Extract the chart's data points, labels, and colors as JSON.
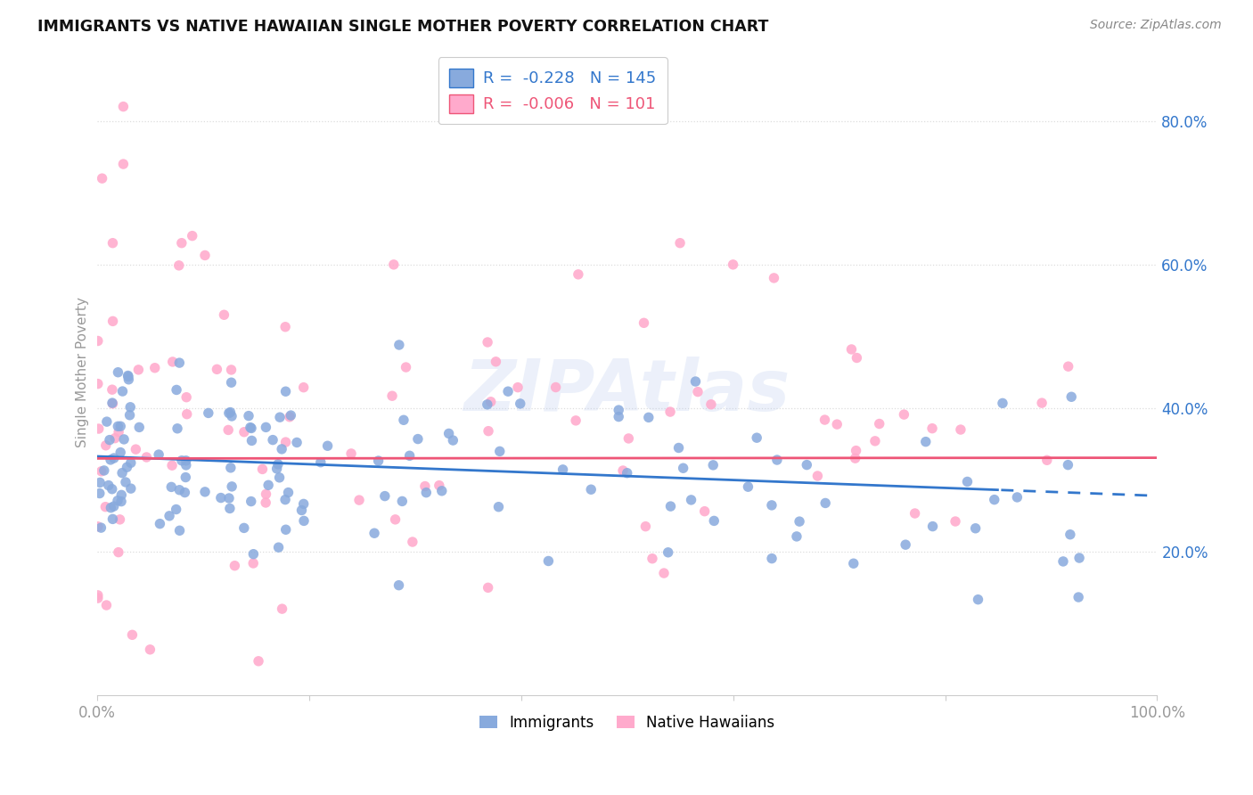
{
  "title": "IMMIGRANTS VS NATIVE HAWAIIAN SINGLE MOTHER POVERTY CORRELATION CHART",
  "source": "Source: ZipAtlas.com",
  "ylabel": "Single Mother Poverty",
  "ytick_vals": [
    0.2,
    0.4,
    0.6,
    0.8
  ],
  "ytick_labels": [
    "20.0%",
    "40.0%",
    "60.0%",
    "80.0%"
  ],
  "xtick_positions": [
    0.0,
    0.2,
    0.4,
    0.6,
    0.8,
    1.0
  ],
  "xtick_labels": [
    "0.0%",
    "",
    "",
    "",
    "",
    "100.0%"
  ],
  "xlim": [
    0.0,
    1.0
  ],
  "ylim": [
    0.0,
    0.9
  ],
  "R_immigrants": -0.228,
  "R_natives": -0.006,
  "N_immigrants": 145,
  "N_natives": 101,
  "color_immigrants": "#88aadd",
  "color_natives": "#ffaacc",
  "color_trend_immigrants": "#3377cc",
  "color_trend_natives": "#ee5577",
  "watermark_text": "ZIPAtlas",
  "watermark_color": "#bbccee",
  "watermark_alpha": 0.28,
  "legend_r_imm": "-0.228",
  "legend_n_imm": "145",
  "legend_r_nat": "-0.006",
  "legend_n_nat": "101",
  "title_fontsize": 12.5,
  "source_fontsize": 10,
  "tick_fontsize": 12,
  "legend_fontsize": 13,
  "ylabel_fontsize": 11,
  "grid_color": "#dddddd",
  "axis_color": "#999999",
  "trend_imm_intercept": 0.333,
  "trend_imm_slope": -0.055,
  "trend_nat_intercept": 0.33,
  "trend_nat_slope": 0.001,
  "solid_line_end_x": 0.85
}
